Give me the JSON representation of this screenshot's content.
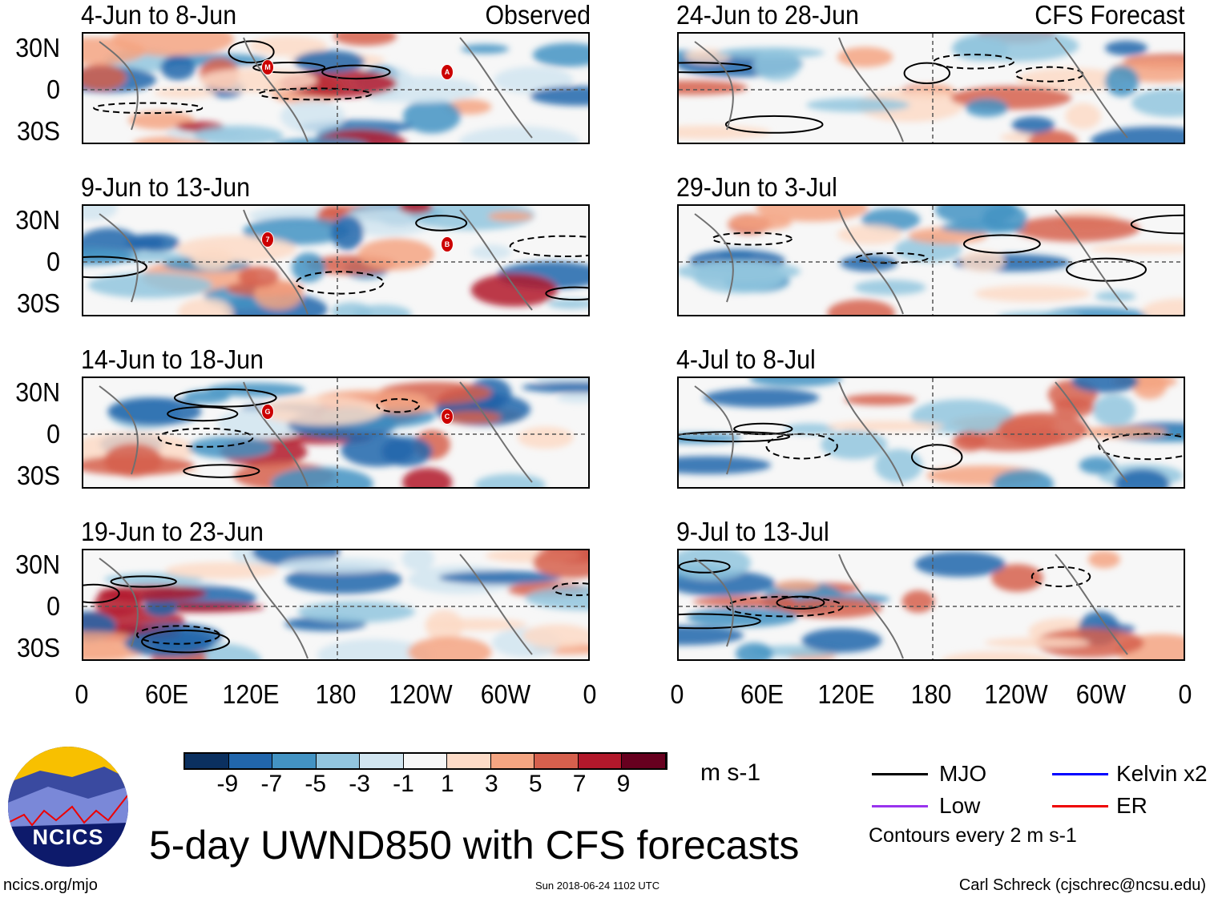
{
  "headers": {
    "observed": "Observed",
    "forecast": "CFS Forecast"
  },
  "panels": [
    {
      "title": "4-Jun to 8-Jun",
      "storms": [
        "M",
        "A"
      ]
    },
    {
      "title": "9-Jun to 13-Jun",
      "storms": [
        "7",
        "B"
      ]
    },
    {
      "title": "14-Jun to 18-Jun",
      "storms": [
        "G",
        "C"
      ]
    },
    {
      "title": "19-Jun to 23-Jun",
      "storms": []
    },
    {
      "title": "24-Jun to 28-Jun",
      "storms": []
    },
    {
      "title": "29-Jun to 3-Jul",
      "storms": []
    },
    {
      "title": "4-Jul to 8-Jul",
      "storms": []
    },
    {
      "title": "9-Jul to 13-Jul",
      "storms": []
    }
  ],
  "y_ticks": [
    "30N",
    "0",
    "30S"
  ],
  "x_ticks": [
    "0",
    "60E",
    "120E",
    "180",
    "120W",
    "60W",
    "0"
  ],
  "colorbar": {
    "ticks": [
      "-9",
      "-7",
      "-5",
      "-3",
      "-1",
      "1",
      "3",
      "5",
      "7",
      "9"
    ],
    "colors": [
      "#0b3060",
      "#2166ac",
      "#4393c3",
      "#92c5de",
      "#d1e5f0",
      "#f7f7f7",
      "#fddbc7",
      "#f4a582",
      "#d6604d",
      "#b2182b",
      "#67001f"
    ],
    "units": "m s-1"
  },
  "legend": {
    "items": [
      {
        "label": "MJO",
        "color": "#000000"
      },
      {
        "label": "Kelvin x2",
        "color": "#0000ff"
      },
      {
        "label": "Low",
        "color": "#9933ee"
      },
      {
        "label": "ER",
        "color": "#ee0000"
      }
    ],
    "note": "Contours every 2 m s-1"
  },
  "logo": {
    "text": "NCICS"
  },
  "title": "5-day UWND850 with CFS forecasts",
  "footer": {
    "left": "ncics.org/mjo",
    "center": "Sun 2018-06-24 1102 UTC",
    "right": "Carl Schreck (cjschrec@ncsu.edu)"
  }
}
